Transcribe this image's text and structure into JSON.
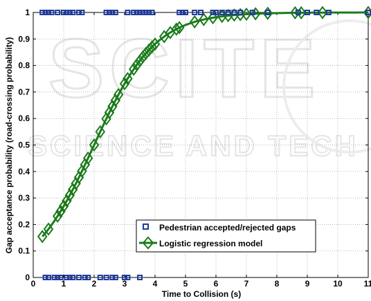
{
  "watermark": "SCITEPRESS — SCIENCE AND TECHNOLOGY PUBLICATIONS",
  "colors": {
    "observed": "#1f3b9c",
    "model": "#1a7a1a",
    "grid": "#9a9a9a",
    "watermark": "#e6e6e6"
  },
  "chart_data": {
    "type": "scatter",
    "xlabel": "Time to Collision (s)",
    "ylabel": "Gap acceptance probability (road-crossing probability)",
    "xlim": [
      0,
      11
    ],
    "ylim": [
      0,
      1
    ],
    "x_ticks": [
      "0",
      "1",
      "2",
      "3",
      "4",
      "5",
      "6",
      "7",
      "8",
      "9",
      "10",
      "11"
    ],
    "y_ticks": [
      "0",
      "0.1",
      "0.2",
      "0.3",
      "0.4",
      "0.5",
      "0.6",
      "0.7",
      "0.8",
      "0.9",
      "1"
    ],
    "grid": true,
    "legend_position": "bottom-center",
    "series": [
      {
        "name": "Pedestrian accepted/rejected gaps",
        "marker": "square",
        "points": {
          "y1_x": [
            0.3,
            0.4,
            0.5,
            0.6,
            0.8,
            1.0,
            1.1,
            1.2,
            1.3,
            1.5,
            1.6,
            2.4,
            2.5,
            2.6,
            2.7,
            3.1,
            3.3,
            3.4,
            3.5,
            3.6,
            3.7,
            3.8,
            3.9,
            4.8,
            4.9,
            5.0,
            5.3,
            5.5,
            5.9,
            6.0,
            6.2,
            6.4,
            6.6,
            6.8,
            7.2,
            7.7,
            8.7,
            9.0,
            9.3,
            9.7,
            11.0
          ],
          "y0_x": [
            0.4,
            0.5,
            0.7,
            0.8,
            0.9,
            1.1,
            1.2,
            1.3,
            1.5,
            1.7,
            1.8,
            2.2,
            2.4,
            2.6,
            2.7,
            3.0,
            3.1,
            3.5
          ]
        }
      },
      {
        "name": "Logistic regression model",
        "marker": "diamond",
        "model": {
          "b0": -2.0,
          "b1": 1.0
        },
        "marker_x": [
          0.3,
          0.5,
          0.8,
          0.9,
          1.0,
          1.1,
          1.2,
          1.3,
          1.4,
          1.5,
          1.6,
          1.7,
          1.8,
          2.0,
          2.2,
          2.4,
          2.5,
          2.6,
          2.7,
          2.8,
          3.0,
          3.1,
          3.3,
          3.4,
          3.5,
          3.6,
          3.7,
          3.8,
          3.9,
          4.0,
          4.3,
          4.5,
          4.7,
          4.8,
          5.3,
          5.6,
          5.9,
          6.2,
          6.4,
          6.6,
          6.8,
          7.0,
          7.3,
          7.7,
          8.6,
          8.8,
          9.5,
          11.0
        ]
      }
    ]
  }
}
